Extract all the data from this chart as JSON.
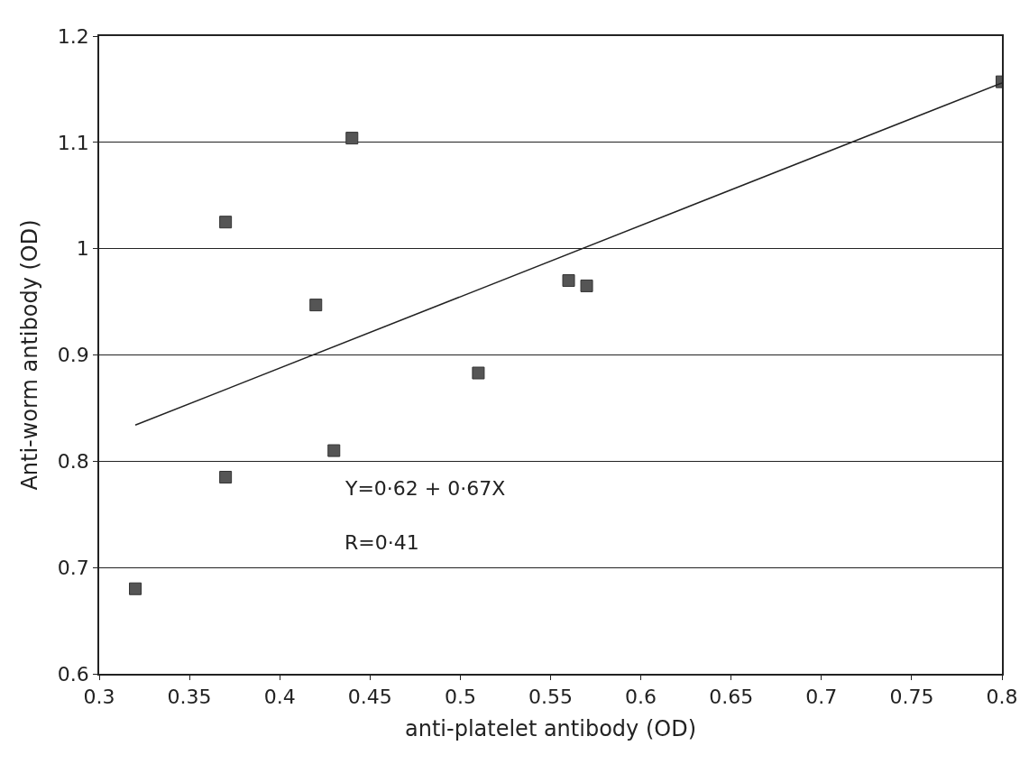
{
  "chart_data": {
    "type": "scatter",
    "xlabel": "anti-platelet antibody (OD)",
    "ylabel": "Anti-worm antibody (OD)",
    "series": [
      {
        "color": "#555555",
        "marker": "square",
        "x": [
          0.32,
          0.37,
          0.37,
          0.42,
          0.43,
          0.44,
          0.51,
          0.56,
          0.57,
          0.8
        ],
        "values": [
          0.68,
          0.785,
          1.025,
          0.947,
          0.81,
          1.104,
          0.883,
          0.97,
          0.965,
          1.157
        ]
      },
      {
        "type": "line",
        "color": "#222222",
        "marker": "none",
        "line_style": "solid",
        "x": [
          0.32,
          0.8
        ],
        "values": [
          0.834,
          1.156
        ]
      }
    ],
    "xlim": [
      0.3,
      0.8
    ],
    "ylim": [
      0.6,
      1.2
    ],
    "xticks": [
      0.3,
      0.35,
      0.4,
      0.45,
      0.5,
      0.55,
      0.6,
      0.65,
      0.7,
      0.75,
      0.8
    ],
    "yticks": [
      0.6,
      0.7,
      0.8,
      0.9,
      1,
      1.1,
      1.2
    ],
    "grid": "y",
    "annotations": [
      "Y=0·62 + 0·67X",
      "R=0·41"
    ]
  }
}
